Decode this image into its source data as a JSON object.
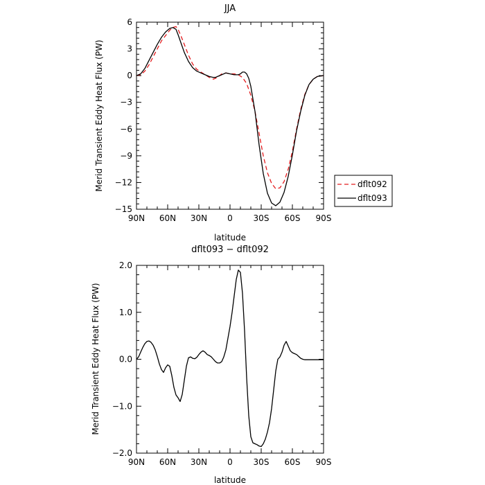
{
  "chart_data": [
    {
      "type": "line",
      "title": "JJA",
      "xlabel": "latitude",
      "ylabel": "Merid Transient Eddy Heat Flux (PW)",
      "xlim": [
        90,
        -90
      ],
      "ylim": [
        -15,
        6
      ],
      "x_ticks": [
        90,
        60,
        30,
        0,
        -30,
        -60,
        -90
      ],
      "x_tick_labels": [
        "90N",
        "60N",
        "30N",
        "0",
        "30S",
        "60S",
        "90S"
      ],
      "y_ticks": [
        6,
        3,
        0,
        -3,
        -6,
        -9,
        -12,
        -15
      ],
      "y_tick_labels": [
        "6",
        "3",
        "0",
        "−3",
        "−6",
        "−9",
        "−12",
        "−15"
      ],
      "legend": {
        "placement": "right",
        "entries": [
          "dflt092",
          "dflt093"
        ]
      },
      "series": [
        {
          "name": "dflt092",
          "color": "#e31a1c",
          "dash": "dashed",
          "x": [
            90,
            86,
            82,
            78,
            74,
            70,
            66,
            62,
            58,
            55,
            52,
            50,
            47,
            44,
            40,
            36,
            32,
            28,
            24,
            20,
            16,
            14,
            12,
            10,
            8,
            4,
            0,
            -4,
            -8,
            -12,
            -16,
            -20,
            -24,
            -28,
            -32,
            -36,
            -40,
            -44,
            -48,
            -52,
            -56,
            -60,
            -64,
            -68,
            -72,
            -76,
            -80,
            -84,
            -90
          ],
          "y": [
            0.0,
            0.1,
            0.5,
            1.2,
            2.1,
            3.0,
            3.9,
            4.5,
            5.1,
            5.4,
            5.5,
            5.2,
            4.4,
            3.5,
            2.3,
            1.3,
            0.7,
            0.4,
            0.1,
            -0.2,
            -0.4,
            -0.3,
            -0.2,
            0.0,
            0.2,
            0.3,
            0.2,
            0.2,
            0.1,
            -0.2,
            -0.9,
            -2.2,
            -4.0,
            -6.5,
            -9.0,
            -10.9,
            -12.1,
            -12.7,
            -12.6,
            -11.9,
            -10.5,
            -8.5,
            -6.0,
            -3.8,
            -2.1,
            -1.0,
            -0.4,
            -0.1,
            0.0
          ]
        },
        {
          "name": "dflt093",
          "color": "#000000",
          "dash": "solid",
          "x": [
            90,
            86,
            82,
            78,
            74,
            70,
            66,
            62,
            58,
            55,
            52,
            50,
            47,
            44,
            40,
            36,
            32,
            28,
            24,
            20,
            16,
            14,
            12,
            10,
            8,
            4,
            0,
            -4,
            -8,
            -10,
            -12,
            -14,
            -16,
            -18,
            -20,
            -24,
            -28,
            -32,
            -36,
            -40,
            -44,
            -48,
            -52,
            -56,
            -60,
            -64,
            -68,
            -72,
            -76,
            -80,
            -84,
            -90
          ],
          "y": [
            0.0,
            0.2,
            0.8,
            1.7,
            2.6,
            3.5,
            4.3,
            4.9,
            5.3,
            5.4,
            5.2,
            4.6,
            3.6,
            2.6,
            1.6,
            0.9,
            0.5,
            0.3,
            0.1,
            -0.1,
            -0.2,
            -0.2,
            -0.1,
            0.0,
            0.1,
            0.3,
            0.2,
            0.1,
            0.1,
            0.2,
            0.4,
            0.4,
            0.2,
            -0.3,
            -1.2,
            -4.0,
            -7.8,
            -11.0,
            -13.2,
            -14.3,
            -14.6,
            -14.2,
            -13.1,
            -11.3,
            -8.9,
            -6.2,
            -4.0,
            -2.2,
            -1.0,
            -0.4,
            -0.1,
            0.0
          ]
        }
      ]
    },
    {
      "type": "line",
      "title": "dflt093 − dflt092",
      "xlabel": "latitude",
      "ylabel": "Merid Transient Eddy Heat Flux (PW)",
      "xlim": [
        90,
        -90
      ],
      "ylim": [
        -2.0,
        2.0
      ],
      "x_ticks": [
        90,
        60,
        30,
        0,
        -30,
        -60,
        -90
      ],
      "x_tick_labels": [
        "90N",
        "60N",
        "30N",
        "0",
        "30S",
        "60S",
        "90S"
      ],
      "y_ticks": [
        2.0,
        1.0,
        0.0,
        -1.0,
        -2.0
      ],
      "y_tick_labels": [
        "2.0",
        "1.0",
        "0.0",
        "−1.0",
        "−2.0"
      ],
      "series": [
        {
          "color": "#000000",
          "dash": "solid",
          "x": [
            90,
            88,
            86,
            84,
            82,
            80,
            78,
            76,
            74,
            72,
            70,
            68,
            66,
            64,
            62,
            60,
            58,
            56,
            54,
            52,
            50,
            48,
            46,
            44,
            42,
            40,
            38,
            36,
            34,
            32,
            30,
            28,
            26,
            24,
            22,
            20,
            18,
            16,
            14,
            12,
            10,
            8,
            6,
            4,
            2,
            0,
            -2,
            -4,
            -6,
            -8,
            -10,
            -12,
            -14,
            -16,
            -18,
            -20,
            -22,
            -24,
            -26,
            -28,
            -30,
            -32,
            -34,
            -36,
            -38,
            -40,
            -42,
            -44,
            -46,
            -48,
            -50,
            -52,
            -54,
            -56,
            -58,
            -60,
            -62,
            -64,
            -66,
            -68,
            -70,
            -72,
            -74,
            -76,
            -78,
            -80,
            -82,
            -84,
            -86,
            -88,
            -90
          ],
          "y": [
            0.0,
            0.05,
            0.15,
            0.25,
            0.33,
            0.38,
            0.39,
            0.36,
            0.3,
            0.2,
            0.06,
            -0.1,
            -0.22,
            -0.28,
            -0.18,
            -0.12,
            -0.15,
            -0.35,
            -0.6,
            -0.76,
            -0.82,
            -0.9,
            -0.75,
            -0.45,
            -0.15,
            0.03,
            0.05,
            0.02,
            0.01,
            0.04,
            0.1,
            0.15,
            0.18,
            0.15,
            0.1,
            0.08,
            0.05,
            0.0,
            -0.05,
            -0.08,
            -0.08,
            -0.05,
            0.05,
            0.2,
            0.45,
            0.7,
            1.0,
            1.35,
            1.7,
            1.9,
            1.85,
            1.4,
            0.6,
            -0.4,
            -1.2,
            -1.65,
            -1.78,
            -1.8,
            -1.82,
            -1.85,
            -1.86,
            -1.8,
            -1.7,
            -1.55,
            -1.35,
            -1.05,
            -0.65,
            -0.25,
            0.0,
            0.05,
            0.15,
            0.3,
            0.38,
            0.28,
            0.18,
            0.14,
            0.12,
            0.1,
            0.06,
            0.02,
            0.0,
            -0.01,
            -0.01,
            -0.01,
            -0.01,
            -0.01,
            -0.01,
            -0.01,
            -0.01,
            -0.01,
            -0.01
          ]
        }
      ]
    }
  ]
}
